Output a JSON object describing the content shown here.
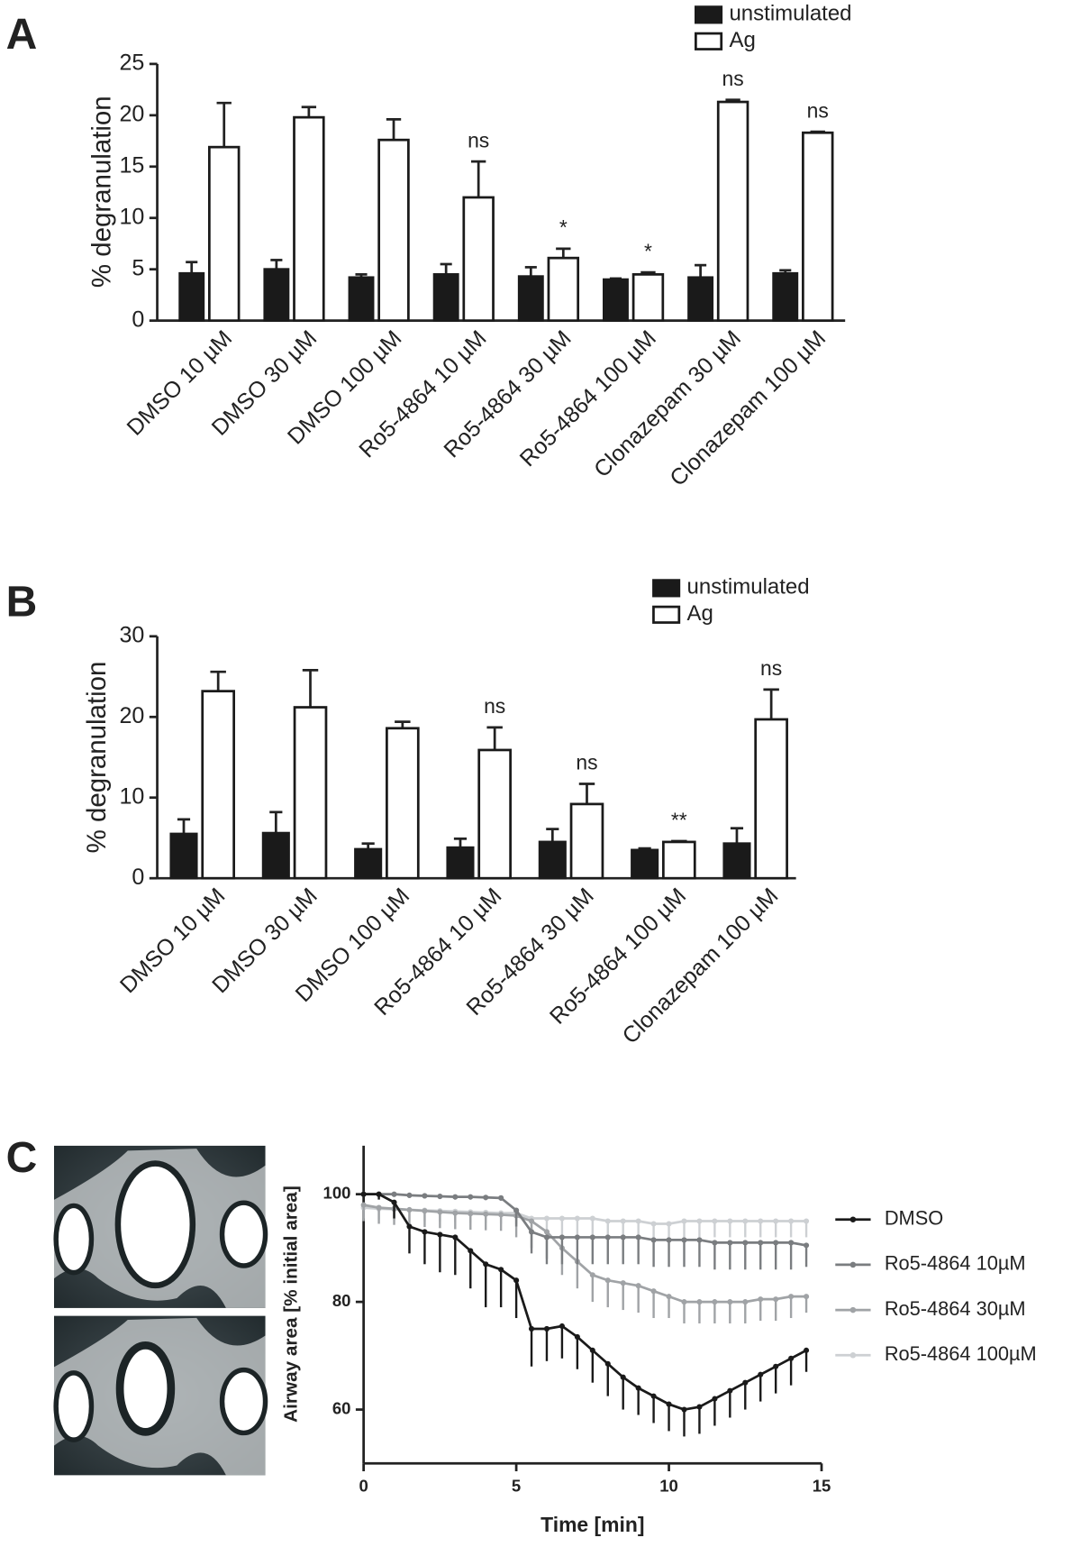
{
  "chart_data": [
    {
      "type": "bar",
      "panel": "A",
      "ylabel": "% degranulation",
      "categories": [
        "DMSO 10 µM",
        "DMSO 30 µM",
        "DMSO 100 µM",
        "Ro5-4864 10 µM",
        "Ro5-4864 30 µM",
        "Ro5-4864 100 µM",
        "Clonazepam 30 µM",
        "Clonazepam 100 µM"
      ],
      "series": [
        {
          "name": "unstimulated",
          "color": "#1a1a1a",
          "values": [
            4.6,
            5.0,
            4.2,
            4.5,
            4.3,
            4.0,
            4.2,
            4.6
          ],
          "errors": [
            1.1,
            0.9,
            0.3,
            1.0,
            0.9,
            0.1,
            1.2,
            0.3
          ]
        },
        {
          "name": "Ag",
          "color": "#ffffff",
          "values": [
            16.9,
            19.8,
            17.6,
            12.0,
            6.1,
            4.5,
            21.3,
            18.3
          ],
          "errors": [
            4.3,
            1.0,
            2.0,
            3.5,
            0.9,
            0.2,
            0.2,
            0.1
          ]
        }
      ],
      "annotations": [
        {
          "category": "Ro5-4864 10 µM",
          "text": "ns"
        },
        {
          "category": "Ro5-4864 30 µM",
          "text": "*"
        },
        {
          "category": "Ro5-4864 100 µM",
          "text": "*"
        },
        {
          "category": "Clonazepam 30 µM",
          "text": "ns"
        },
        {
          "category": "Clonazepam 100 µM",
          "text": "ns"
        }
      ],
      "ylim": [
        0,
        25
      ],
      "yticks": [
        0,
        5,
        10,
        15,
        20,
        25
      ],
      "legend": "top-right"
    },
    {
      "type": "bar",
      "panel": "B",
      "ylabel": "% degranulation",
      "categories": [
        "DMSO 10 µM",
        "DMSO 30 µM",
        "DMSO 100 µM",
        "Ro5-4864 10 µM",
        "Ro5-4864 30 µM",
        "Ro5-4864 100 µM",
        "Clonazepam 100 µM"
      ],
      "series": [
        {
          "name": "unstimulated",
          "color": "#1a1a1a",
          "values": [
            5.5,
            5.6,
            3.6,
            3.8,
            4.5,
            3.5,
            4.3
          ],
          "errors": [
            1.8,
            2.6,
            0.7,
            1.1,
            1.6,
            0.2,
            1.9
          ]
        },
        {
          "name": "Ag",
          "color": "#ffffff",
          "values": [
            23.2,
            21.2,
            18.6,
            15.9,
            9.2,
            4.5,
            19.7
          ],
          "errors": [
            2.4,
            4.6,
            0.8,
            2.8,
            2.5,
            0.1,
            3.7
          ]
        }
      ],
      "annotations": [
        {
          "category": "Ro5-4864 10 µM",
          "text": "ns"
        },
        {
          "category": "Ro5-4864 30 µM",
          "text": "ns"
        },
        {
          "category": "Ro5-4864 100 µM",
          "text": "**"
        },
        {
          "category": "Clonazepam 100 µM",
          "text": "ns"
        }
      ],
      "ylim": [
        0,
        30
      ],
      "yticks": [
        0,
        10,
        20,
        30
      ],
      "legend": "top-right"
    },
    {
      "type": "line",
      "panel": "C",
      "xlabel": "Time [min]",
      "ylabel": "Airway area [% initial area]",
      "x": [
        0,
        0.5,
        1,
        1.5,
        2,
        2.5,
        3,
        3.5,
        4,
        4.5,
        5,
        5.5,
        6,
        6.5,
        7,
        7.5,
        8,
        8.5,
        9,
        9.5,
        10,
        10.5,
        11,
        11.5,
        12,
        12.5,
        13,
        13.5,
        14,
        14.5
      ],
      "series": [
        {
          "name": "DMSO",
          "color": "#1a1a1a",
          "values": [
            100,
            100,
            98.5,
            94,
            93,
            92.5,
            92,
            89.5,
            87,
            86,
            84,
            75,
            75,
            75.5,
            73.5,
            71,
            68.5,
            66,
            64,
            62.5,
            61,
            60,
            60.5,
            62,
            63.5,
            65,
            66.5,
            68,
            69.5,
            71
          ],
          "errors": [
            0.5,
            1,
            3,
            5,
            6,
            7,
            7,
            7,
            8,
            7,
            7,
            7,
            6,
            6,
            6,
            6,
            6,
            6,
            5,
            5,
            5,
            5,
            5,
            5,
            5,
            5,
            5,
            5,
            5,
            4
          ]
        },
        {
          "name": "Ro5-4864 10µM",
          "color": "#7a7d80",
          "values": [
            100,
            100,
            100,
            99.8,
            99.7,
            99.6,
            99.5,
            99.5,
            99.4,
            99.3,
            97,
            93,
            92,
            92,
            92,
            92,
            92,
            92,
            92,
            91.5,
            91.5,
            91.5,
            91.5,
            91,
            91,
            91,
            91,
            91,
            91,
            90.5
          ],
          "errors": [
            0.5,
            0.5,
            0.5,
            0.5,
            0.5,
            0.5,
            0.5,
            0.5,
            0.5,
            0.5,
            3,
            4,
            5,
            5,
            5,
            5,
            5,
            5,
            5,
            5,
            5,
            5,
            5,
            5,
            5,
            5,
            5,
            5,
            5,
            4
          ]
        },
        {
          "name": "Ro5-4864 30µM",
          "color": "#a0a3a6",
          "values": [
            98,
            97.5,
            97.3,
            97.1,
            96.9,
            96.7,
            96.5,
            96.4,
            96.3,
            96.2,
            96,
            95,
            93,
            90,
            87.5,
            85,
            84,
            83.5,
            83,
            82,
            81,
            80,
            80,
            80,
            80,
            80,
            80.5,
            80.5,
            81,
            81
          ],
          "errors": [
            3,
            3,
            3,
            3,
            3,
            3,
            3,
            3,
            3,
            3,
            4,
            5,
            5,
            5,
            5,
            5,
            5,
            5,
            5,
            5,
            4,
            4,
            4,
            4,
            4,
            4,
            4,
            4,
            4,
            3
          ]
        },
        {
          "name": "Ro5-4864 100µM",
          "color": "#cdd0d3",
          "values": [
            97.5,
            97.3,
            97.2,
            97.1,
            97,
            96.9,
            96.8,
            96.7,
            96.6,
            96.5,
            96.5,
            95.5,
            95.5,
            95.5,
            95.5,
            95.5,
            95,
            95,
            95,
            94.5,
            94.5,
            95,
            95,
            95,
            95,
            95,
            95,
            95,
            95,
            95
          ],
          "errors": [
            2,
            2,
            2,
            2,
            2,
            2,
            2,
            2,
            2,
            2,
            2,
            3,
            3,
            3,
            3,
            3,
            3,
            3,
            3,
            3,
            3,
            3,
            3,
            3,
            3,
            3,
            3,
            3,
            3,
            3
          ]
        }
      ],
      "xlim": [
        0,
        15
      ],
      "xticks": [
        0,
        5,
        10,
        15
      ],
      "ylim": [
        50,
        109
      ],
      "yticks": [
        60,
        80,
        100
      ],
      "legend": "right"
    }
  ]
}
